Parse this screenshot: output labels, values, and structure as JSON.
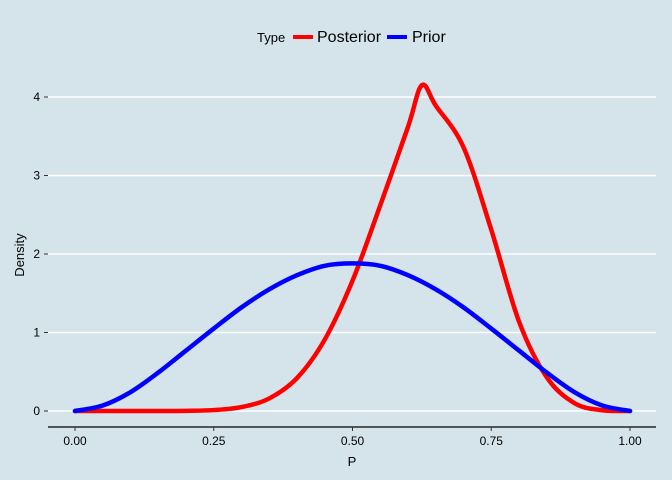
{
  "chart_data": {
    "type": "line",
    "xlabel": "P",
    "ylabel": "Density",
    "xlim": [
      0,
      1
    ],
    "ylim": [
      -0.2,
      4.3
    ],
    "x_ticks": [
      "0.00",
      "0.25",
      "0.50",
      "0.75",
      "1.00"
    ],
    "y_ticks": [
      "0",
      "1",
      "2",
      "3",
      "4"
    ],
    "grid": "horizontal major lines",
    "legend": {
      "title": "Type",
      "placement": "top",
      "entries": [
        "Posterior",
        "Prior"
      ]
    },
    "series": [
      {
        "name": "Posterior",
        "color": "#ff0000",
        "distribution": "Beta(12, 8)",
        "x": [
          0,
          0.05,
          0.1,
          0.15,
          0.2,
          0.25,
          0.3,
          0.35,
          0.4,
          0.45,
          0.5,
          0.55,
          0.6,
          0.625,
          0.65,
          0.7,
          0.75,
          0.8,
          0.85,
          0.9,
          0.95,
          1.0
        ],
        "y": [
          0,
          0,
          0,
          0,
          0.002,
          0.012,
          0.05,
          0.16,
          0.42,
          0.91,
          1.66,
          2.62,
          3.62,
          4.15,
          3.89,
          3.36,
          2.31,
          1.14,
          0.43,
          0.1,
          0.01,
          0
        ]
      },
      {
        "name": "Prior",
        "color": "#0000ff",
        "distribution": "Beta(3, 3)",
        "x": [
          0,
          0.05,
          0.1,
          0.15,
          0.2,
          0.25,
          0.3,
          0.35,
          0.4,
          0.45,
          0.5,
          0.55,
          0.6,
          0.65,
          0.7,
          0.75,
          0.8,
          0.85,
          0.9,
          0.95,
          1.0
        ],
        "y": [
          0,
          0.07,
          0.24,
          0.49,
          0.77,
          1.05,
          1.32,
          1.55,
          1.73,
          1.85,
          1.88,
          1.85,
          1.73,
          1.55,
          1.32,
          1.05,
          0.77,
          0.49,
          0.24,
          0.07,
          0
        ]
      }
    ]
  }
}
